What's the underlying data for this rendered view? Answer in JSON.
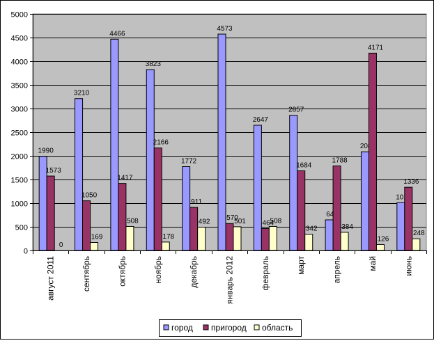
{
  "chart_data": {
    "type": "bar",
    "categories": [
      "август 2011",
      "сентябрь",
      "октябрь",
      "ноябрь",
      "декабрь",
      "январь 2012",
      "февраль",
      "март",
      "апрель",
      "май",
      "июнь"
    ],
    "series": [
      {
        "name": "город",
        "color": "#9999ff",
        "values": [
          1990,
          3210,
          4466,
          3823,
          1772,
          4573,
          2647,
          2857,
          647,
          2086,
          1010
        ]
      },
      {
        "name": "пригород",
        "color": "#993366",
        "values": [
          1573,
          1050,
          1417,
          2166,
          911,
          570,
          464,
          1684,
          1788,
          4171,
          1336
        ]
      },
      {
        "name": "область",
        "color": "#ffffcc",
        "values": [
          0,
          169,
          508,
          178,
          492,
          501,
          508,
          342,
          384,
          126,
          248
        ]
      }
    ],
    "ylim": [
      0,
      5000
    ],
    "yticks": [
      0,
      500,
      1000,
      1500,
      2000,
      2500,
      3000,
      3500,
      4000,
      4500,
      5000
    ],
    "grid": true,
    "plot_background": "#c0c0c0",
    "legend": "bottom",
    "data_labels": true,
    "title": "",
    "xlabel": "",
    "ylabel": ""
  }
}
